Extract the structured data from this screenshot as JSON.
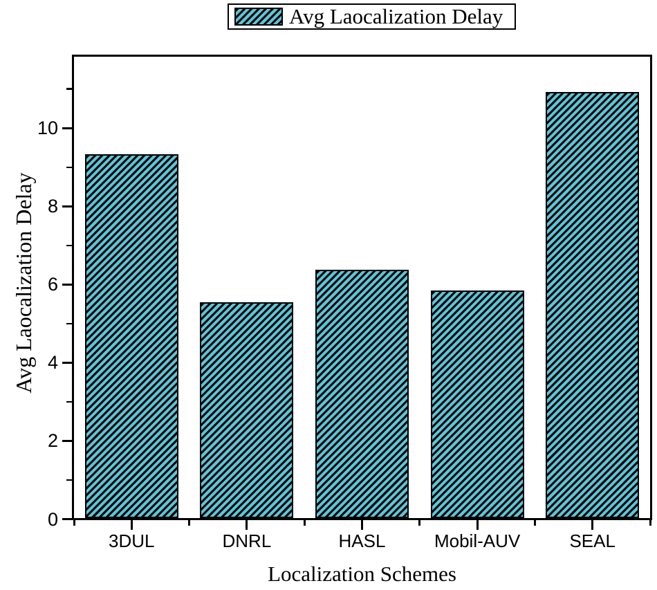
{
  "legend": {
    "label": "Avg Laocalization Delay",
    "position": "top-center-outside",
    "swatch_style": "hatched"
  },
  "chart_data": {
    "type": "bar",
    "categories": [
      "3DUL",
      "DNRL",
      "HASL",
      "Mobil-AUV",
      "SEAL"
    ],
    "values": [
      9.3,
      5.52,
      6.35,
      5.82,
      10.9
    ],
    "series_name": "Avg Laocalization Delay",
    "title": "",
    "xlabel": "Localization Schemes",
    "ylabel": "Avg Laocalization Delay",
    "ylim": [
      0,
      11.8
    ],
    "yticks_major": [
      0,
      2,
      4,
      6,
      8,
      10
    ],
    "yticks_minor": [
      1,
      3,
      5,
      7,
      9,
      11
    ],
    "grid": false,
    "bar_fill_color": "#5BC6DA",
    "bar_hatch": "diagonal-forward-slash",
    "bar_hatch_color": "#0a0a0a",
    "bar_border_color": "#000000",
    "axis_color": "#000000",
    "plot_background": "#ffffff"
  }
}
